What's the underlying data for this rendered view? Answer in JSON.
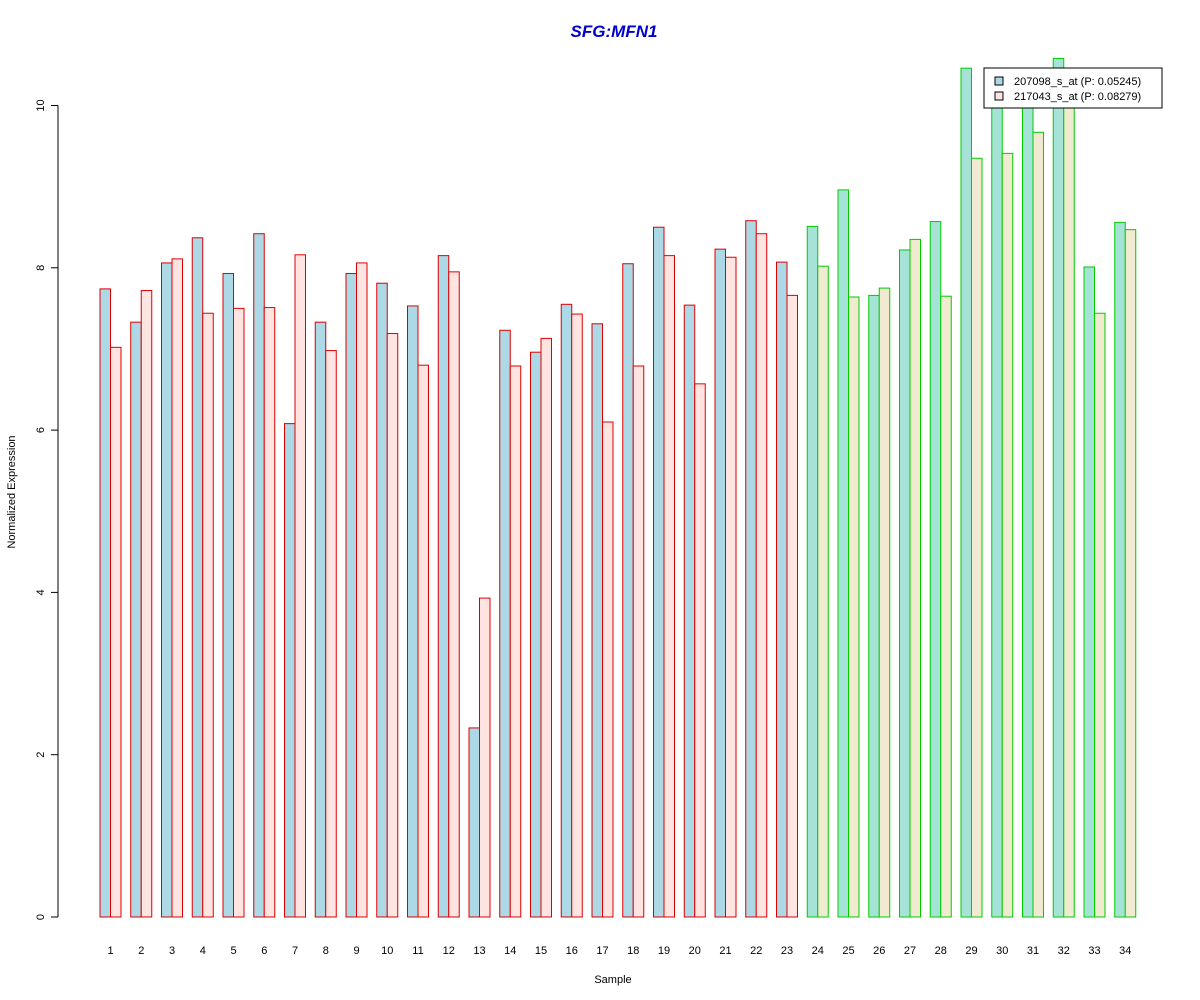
{
  "chart_data": {
    "type": "bar",
    "title": "SFG:MFN1",
    "xlabel": "Sample",
    "ylabel": "Normalized Expression",
    "ylim": [
      0,
      10.5
    ],
    "yticks": [
      0,
      2,
      4,
      6,
      8,
      10
    ],
    "grid": false,
    "legend_position": "top-right",
    "categories": [
      "1",
      "2",
      "3",
      "4",
      "5",
      "6",
      "7",
      "8",
      "9",
      "10",
      "11",
      "12",
      "13",
      "14",
      "15",
      "16",
      "17",
      "18",
      "19",
      "20",
      "21",
      "22",
      "23",
      "24",
      "25",
      "26",
      "27",
      "28",
      "29",
      "30",
      "31",
      "32",
      "33",
      "34"
    ],
    "groups": [
      {
        "samples": "1-23",
        "border_color": "#dd0000"
      },
      {
        "samples": "24-34",
        "border_color": "#00cc00"
      }
    ],
    "series": [
      {
        "name": "207098_s_at (P: 0.05245)",
        "fill_group1": "#add8e6",
        "fill_group2": "#a6e3d7",
        "values": [
          7.74,
          7.33,
          8.06,
          8.37,
          7.93,
          8.42,
          6.08,
          7.33,
          7.93,
          7.81,
          7.53,
          8.15,
          2.33,
          7.23,
          6.96,
          7.55,
          7.31,
          8.05,
          8.5,
          7.54,
          8.23,
          8.58,
          8.07,
          8.51,
          8.96,
          7.66,
          8.22,
          8.57,
          10.46,
          10.1,
          10.1,
          10.58,
          8.01,
          8.56
        ]
      },
      {
        "name": "217043_s_at (P: 0.08279)",
        "fill_group1": "#ffe4e1",
        "fill_group2": "#f0ead0",
        "values": [
          7.02,
          7.72,
          8.11,
          7.44,
          7.5,
          7.51,
          8.16,
          6.98,
          8.06,
          7.19,
          6.8,
          7.95,
          3.93,
          6.79,
          7.13,
          7.43,
          6.1,
          6.79,
          8.15,
          6.57,
          8.13,
          8.42,
          7.66,
          8.02,
          7.64,
          7.75,
          8.35,
          7.65,
          9.35,
          9.41,
          9.67,
          10.1,
          7.44,
          8.47
        ]
      }
    ]
  }
}
